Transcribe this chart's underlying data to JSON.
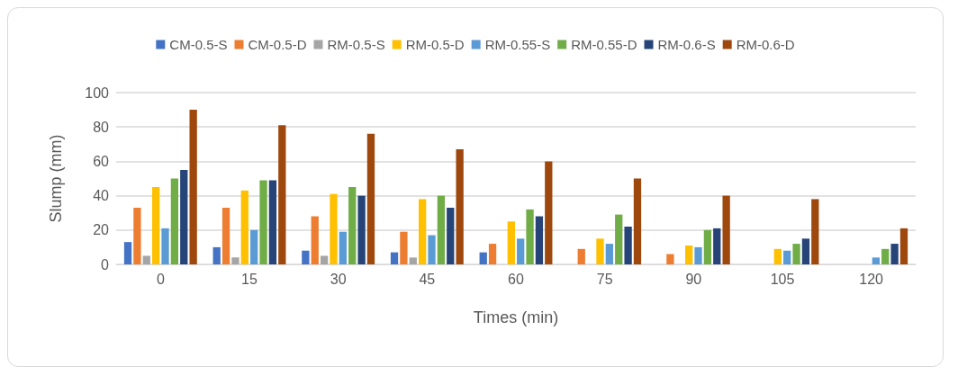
{
  "chart_data": {
    "type": "bar",
    "xlabel": "Times (min)",
    "ylabel": "Slump (mm)",
    "categories": [
      "0",
      "15",
      "30",
      "45",
      "60",
      "75",
      "90",
      "105",
      "120"
    ],
    "ylim": [
      0,
      100
    ],
    "yticks": [
      0,
      20,
      40,
      60,
      80,
      100
    ],
    "grid": "y",
    "legend": "top",
    "series": [
      {
        "name": "CM-0.5-S",
        "color": "#4472c4",
        "values": [
          13,
          10,
          8,
          7,
          7,
          null,
          null,
          null,
          null
        ]
      },
      {
        "name": "CM-0.5-D",
        "color": "#ed7d31",
        "values": [
          33,
          33,
          28,
          19,
          12,
          9,
          6,
          null,
          null
        ]
      },
      {
        "name": "RM-0.5-S",
        "color": "#a5a5a5",
        "values": [
          5,
          4,
          5,
          4,
          null,
          null,
          null,
          null,
          null
        ]
      },
      {
        "name": "RM-0.5-D",
        "color": "#ffc000",
        "values": [
          45,
          43,
          41,
          38,
          25,
          15,
          11,
          9,
          null
        ]
      },
      {
        "name": "RM-0.55-S",
        "color": "#5b9bd5",
        "values": [
          21,
          20,
          19,
          17,
          15,
          12,
          10,
          8,
          4
        ]
      },
      {
        "name": "RM-0.55-D",
        "color": "#70ad47",
        "values": [
          50,
          49,
          45,
          40,
          32,
          29,
          20,
          12,
          9
        ]
      },
      {
        "name": "RM-0.6-S",
        "color": "#264478",
        "values": [
          55,
          49,
          40,
          33,
          28,
          22,
          21,
          15,
          12
        ]
      },
      {
        "name": "RM-0.6-D",
        "color": "#9e480e",
        "values": [
          90,
          81,
          76,
          67,
          60,
          50,
          40,
          38,
          21
        ]
      }
    ]
  }
}
